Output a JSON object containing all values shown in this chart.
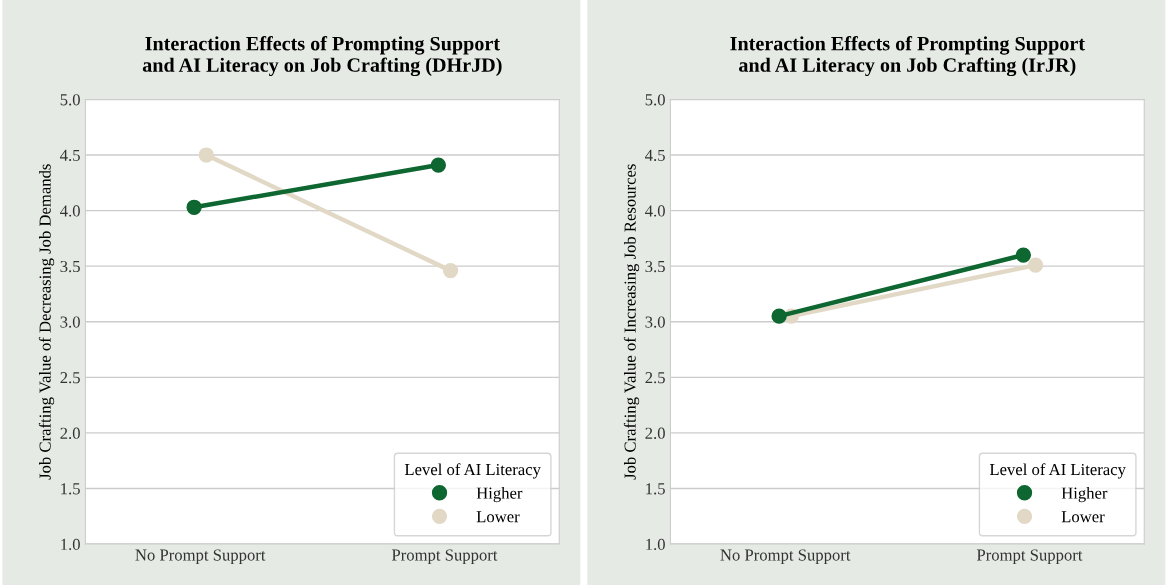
{
  "chart_data": [
    {
      "type": "line",
      "title": "Interaction Effects of Prompting Support\nand AI Literacy on Job Crafting (DHrJD)",
      "ylabel": "Job Crafting Value of Decreasing Job Demands",
      "legend_title": "Level of AI Literacy",
      "categories": [
        "No Prompt Support",
        "Prompt Support"
      ],
      "ylim": [
        1.0,
        5.0
      ],
      "yticks": [
        {
          "value": 1.0,
          "label": "1.0"
        },
        {
          "value": 1.5,
          "label": "1.5"
        },
        {
          "value": 2.0,
          "label": "2.0"
        },
        {
          "value": 2.5,
          "label": "2.5"
        },
        {
          "value": 3.0,
          "label": "3.0"
        },
        {
          "value": 3.5,
          "label": "3.5"
        },
        {
          "value": 4.0,
          "label": "4.0"
        },
        {
          "value": 4.5,
          "label": "4.5"
        },
        {
          "value": 5.0,
          "label": "5.0"
        }
      ],
      "grid": "y",
      "legend": "bottom right",
      "marker": "circle",
      "line_style": "solid",
      "series": [
        {
          "name": "Higher",
          "color": "#0e6630",
          "values": [
            4.03,
            4.41
          ]
        },
        {
          "name": "Lower",
          "color": "#e2d8c6",
          "values": [
            4.5,
            3.46
          ]
        }
      ]
    },
    {
      "type": "line",
      "title": "Interaction Effects of Prompting Support\nand AI Literacy on Job Crafting (IrJR)",
      "ylabel": "Job Crafting Value of Increasing Job Resources",
      "legend_title": "Level of AI Literacy",
      "categories": [
        "No Prompt Support",
        "Prompt Support"
      ],
      "ylim": [
        1.0,
        5.0
      ],
      "yticks": [
        {
          "value": 1.0,
          "label": "1.0"
        },
        {
          "value": 1.5,
          "label": "1.5"
        },
        {
          "value": 2.0,
          "label": "2.0"
        },
        {
          "value": 2.5,
          "label": "2.5"
        },
        {
          "value": 3.0,
          "label": "3.0"
        },
        {
          "value": 3.5,
          "label": "3.5"
        },
        {
          "value": 4.0,
          "label": "4.0"
        },
        {
          "value": 4.5,
          "label": "4.5"
        },
        {
          "value": 5.0,
          "label": "5.0"
        }
      ],
      "grid": "y",
      "legend": "bottom right",
      "marker": "circle",
      "line_style": "solid",
      "series": [
        {
          "name": "Higher",
          "color": "#0e6630",
          "values": [
            3.05,
            3.6
          ]
        },
        {
          "name": "Lower",
          "color": "#e2d8c6",
          "values": [
            3.05,
            3.51
          ]
        }
      ]
    }
  ]
}
